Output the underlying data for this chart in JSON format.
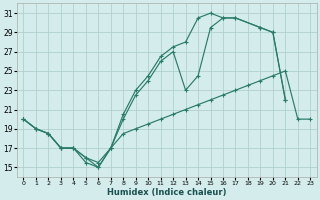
{
  "xlabel": "Humidex (Indice chaleur)",
  "bg_color": "#d4edec",
  "grid_color": "#b0d0ce",
  "line_color": "#2a7a6a",
  "xlim": [
    -0.5,
    23.5
  ],
  "ylim": [
    14.0,
    32.0
  ],
  "xticks": [
    0,
    1,
    2,
    3,
    4,
    5,
    6,
    7,
    8,
    9,
    10,
    11,
    12,
    13,
    14,
    15,
    16,
    17,
    18,
    19,
    20,
    21,
    22,
    23
  ],
  "yticks": [
    15,
    17,
    19,
    21,
    23,
    25,
    27,
    29,
    31
  ],
  "lines": [
    {
      "x": [
        0,
        1,
        2,
        3,
        4,
        5,
        6,
        7,
        8,
        9,
        10,
        11,
        12,
        13,
        14,
        15,
        16,
        17,
        19,
        20,
        21
      ],
      "y": [
        20,
        19,
        18.5,
        17,
        17,
        15.5,
        15,
        17,
        20.5,
        23,
        24.5,
        26.5,
        27.5,
        28,
        30.5,
        31,
        30.5,
        30.5,
        29.5,
        29,
        22
      ]
    },
    {
      "x": [
        0,
        1,
        2,
        3,
        4,
        5,
        6,
        7,
        8,
        9,
        10,
        11,
        12,
        13,
        14,
        15,
        16,
        17,
        19,
        20,
        21
      ],
      "y": [
        20,
        19,
        18.5,
        17,
        17,
        16,
        15,
        17,
        20,
        22.5,
        24,
        26,
        27,
        23,
        24.5,
        29.5,
        30.5,
        30.5,
        29.5,
        29,
        22
      ]
    },
    {
      "x": [
        0,
        1,
        2,
        3,
        4,
        5,
        6,
        7,
        8,
        9,
        10,
        11,
        12,
        13,
        14,
        15,
        16,
        17,
        18,
        19,
        20,
        21,
        22,
        23
      ],
      "y": [
        20,
        19,
        18.5,
        17,
        17,
        16,
        15.5,
        17,
        18.5,
        19,
        19.5,
        20,
        20.5,
        21,
        21.5,
        22,
        22.5,
        23,
        23.5,
        24,
        24.5,
        25,
        20,
        20
      ]
    }
  ]
}
